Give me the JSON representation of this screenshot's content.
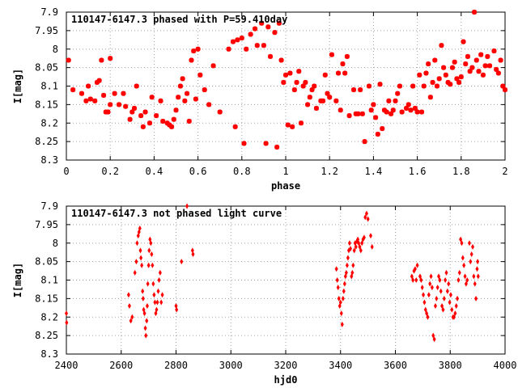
{
  "chart_data": [
    {
      "type": "scatter",
      "title": "110147-6147.3 phased with P=59.410day",
      "xlabel": "phase",
      "ylabel": "I[mag]",
      "xlim": [
        0,
        2
      ],
      "ylim": [
        8.3,
        7.9
      ],
      "y_inverted": true,
      "x_ticks": [
        "0",
        "0.2",
        "0.4",
        "0.6",
        "0.8",
        "1",
        "1.2",
        "1.4",
        "1.6",
        "1.8",
        "2"
      ],
      "x_tick_values": [
        0,
        0.2,
        0.4,
        0.6,
        0.8,
        1,
        1.2,
        1.4,
        1.6,
        1.8,
        2
      ],
      "y_ticks": [
        "7.9",
        "7.95",
        "8",
        "8.05",
        "8.1",
        "8.15",
        "8.2",
        "8.25",
        "8.3"
      ],
      "y_tick_values": [
        7.9,
        7.95,
        8,
        8.05,
        8.1,
        8.15,
        8.2,
        8.25,
        8.3
      ],
      "grid": true,
      "marker": "cross",
      "color": "#ff0000",
      "points": [
        [
          0.01,
          8.03
        ],
        [
          0.03,
          8.11
        ],
        [
          0.07,
          8.12
        ],
        [
          0.09,
          8.14
        ],
        [
          0.1,
          8.1
        ],
        [
          0.11,
          8.135
        ],
        [
          0.13,
          8.14
        ],
        [
          0.14,
          8.09
        ],
        [
          0.15,
          8.085
        ],
        [
          0.16,
          8.03
        ],
        [
          0.17,
          8.125
        ],
        [
          0.18,
          8.17
        ],
        [
          0.19,
          8.17
        ],
        [
          0.2,
          8.15
        ],
        [
          0.2,
          8.025
        ],
        [
          0.22,
          8.12
        ],
        [
          0.24,
          8.15
        ],
        [
          0.26,
          8.12
        ],
        [
          0.27,
          8.155
        ],
        [
          0.29,
          8.19
        ],
        [
          0.3,
          8.17
        ],
        [
          0.31,
          8.16
        ],
        [
          0.32,
          8.1
        ],
        [
          0.34,
          8.18
        ],
        [
          0.35,
          8.21
        ],
        [
          0.36,
          8.17
        ],
        [
          0.38,
          8.2
        ],
        [
          0.39,
          8.13
        ],
        [
          0.41,
          8.18
        ],
        [
          0.43,
          8.14
        ],
        [
          0.44,
          8.195
        ],
        [
          0.46,
          8.2
        ],
        [
          0.47,
          8.205
        ],
        [
          0.48,
          8.21
        ],
        [
          0.49,
          8.19
        ],
        [
          0.5,
          8.165
        ],
        [
          0.51,
          8.13
        ],
        [
          0.52,
          8.1
        ],
        [
          0.53,
          8.08
        ],
        [
          0.54,
          8.14
        ],
        [
          0.55,
          8.12
        ],
        [
          0.56,
          8.195
        ],
        [
          0.57,
          8.03
        ],
        [
          0.58,
          8.005
        ],
        [
          0.59,
          8.135
        ],
        [
          0.6,
          8.0
        ],
        [
          0.61,
          8.07
        ],
        [
          0.63,
          8.11
        ],
        [
          0.65,
          8.15
        ],
        [
          0.67,
          8.045
        ],
        [
          0.7,
          8.17
        ],
        [
          0.74,
          8.0
        ],
        [
          0.76,
          7.98
        ],
        [
          0.77,
          8.21
        ],
        [
          0.78,
          7.975
        ],
        [
          0.8,
          7.97
        ],
        [
          0.81,
          8.255
        ],
        [
          0.82,
          8.0
        ],
        [
          0.84,
          7.96
        ],
        [
          0.86,
          7.945
        ],
        [
          0.87,
          7.99
        ],
        [
          0.89,
          7.93
        ],
        [
          0.9,
          7.99
        ],
        [
          0.91,
          8.255
        ],
        [
          0.92,
          7.94
        ],
        [
          0.93,
          8.02
        ],
        [
          0.95,
          7.955
        ],
        [
          0.96,
          8.265
        ],
        [
          0.97,
          7.93
        ],
        [
          0.98,
          8.03
        ],
        [
          0.99,
          8.09
        ],
        [
          1.0,
          8.07
        ],
        [
          1.01,
          8.205
        ],
        [
          1.02,
          8.065
        ],
        [
          1.03,
          8.21
        ],
        [
          1.04,
          8.11
        ],
        [
          1.05,
          8.09
        ],
        [
          1.06,
          8.06
        ],
        [
          1.07,
          8.2
        ],
        [
          1.08,
          8.1
        ],
        [
          1.09,
          8.09
        ],
        [
          1.1,
          8.15
        ],
        [
          1.11,
          8.13
        ],
        [
          1.12,
          8.11
        ],
        [
          1.13,
          8.1
        ],
        [
          1.14,
          8.16
        ],
        [
          1.16,
          8.14
        ],
        [
          1.17,
          8.14
        ],
        [
          1.18,
          8.07
        ],
        [
          1.19,
          8.12
        ],
        [
          1.2,
          8.13
        ],
        [
          1.21,
          8.015
        ],
        [
          1.23,
          8.14
        ],
        [
          1.24,
          8.065
        ],
        [
          1.25,
          8.165
        ],
        [
          1.26,
          8.04
        ],
        [
          1.27,
          8.065
        ],
        [
          1.28,
          8.02
        ],
        [
          1.29,
          8.18
        ],
        [
          1.31,
          8.11
        ],
        [
          1.32,
          8.175
        ],
        [
          1.33,
          8.175
        ],
        [
          1.34,
          8.11
        ],
        [
          1.35,
          8.175
        ],
        [
          1.36,
          8.25
        ],
        [
          1.38,
          8.1
        ],
        [
          1.39,
          8.165
        ],
        [
          1.4,
          8.15
        ],
        [
          1.41,
          8.185
        ],
        [
          1.42,
          8.23
        ],
        [
          1.43,
          8.095
        ],
        [
          1.44,
          8.215
        ],
        [
          1.45,
          8.165
        ],
        [
          1.46,
          8.17
        ],
        [
          1.47,
          8.14
        ],
        [
          1.48,
          8.175
        ],
        [
          1.49,
          8.165
        ],
        [
          1.5,
          8.14
        ],
        [
          1.51,
          8.12
        ],
        [
          1.52,
          8.1
        ],
        [
          1.53,
          8.17
        ],
        [
          1.55,
          8.16
        ],
        [
          1.56,
          8.15
        ],
        [
          1.57,
          8.165
        ],
        [
          1.58,
          8.1
        ],
        [
          1.59,
          8.16
        ],
        [
          1.6,
          8.17
        ],
        [
          1.61,
          8.07
        ],
        [
          1.62,
          8.17
        ],
        [
          1.63,
          8.1
        ],
        [
          1.64,
          8.065
        ],
        [
          1.65,
          8.04
        ],
        [
          1.66,
          8.13
        ],
        [
          1.67,
          8.09
        ],
        [
          1.68,
          8.03
        ],
        [
          1.69,
          8.1
        ],
        [
          1.7,
          8.08
        ],
        [
          1.71,
          7.99
        ],
        [
          1.72,
          8.05
        ],
        [
          1.73,
          8.07
        ],
        [
          1.74,
          8.09
        ],
        [
          1.75,
          8.095
        ],
        [
          1.76,
          8.05
        ],
        [
          1.77,
          8.035
        ],
        [
          1.78,
          8.08
        ],
        [
          1.79,
          8.09
        ],
        [
          1.8,
          8.075
        ],
        [
          1.81,
          7.98
        ],
        [
          1.82,
          8.04
        ],
        [
          1.83,
          8.02
        ],
        [
          1.84,
          8.06
        ],
        [
          1.85,
          8.05
        ],
        [
          1.86,
          7.9
        ],
        [
          1.87,
          8.03
        ],
        [
          1.88,
          8.06
        ],
        [
          1.89,
          8.015
        ],
        [
          1.9,
          8.07
        ],
        [
          1.91,
          8.045
        ],
        [
          1.92,
          8.02
        ],
        [
          1.93,
          8.045
        ],
        [
          1.95,
          8.005
        ],
        [
          1.96,
          8.055
        ],
        [
          1.97,
          8.065
        ],
        [
          1.98,
          8.03
        ],
        [
          1.99,
          8.1
        ],
        [
          2.0,
          8.11
        ]
      ]
    },
    {
      "type": "scatter",
      "title": "110147-6147.3 not phased light curve",
      "xlabel": "hjd0",
      "ylabel": "I[mag]",
      "xlim": [
        2400,
        4000
      ],
      "ylim": [
        8.3,
        7.9
      ],
      "y_inverted": true,
      "x_ticks": [
        "2400",
        "2600",
        "2800",
        "3000",
        "3200",
        "3400",
        "3600",
        "3800",
        "4000"
      ],
      "x_tick_values": [
        2400,
        2600,
        2800,
        3000,
        3200,
        3400,
        3600,
        3800,
        4000
      ],
      "y_ticks": [
        "7.9",
        "7.95",
        "8",
        "8.05",
        "8.1",
        "8.15",
        "8.2",
        "8.25",
        "8.3"
      ],
      "y_tick_values": [
        7.9,
        7.95,
        8,
        8.05,
        8.1,
        8.15,
        8.2,
        8.25,
        8.3
      ],
      "grid": true,
      "marker": "diamond",
      "color": "#ff0000",
      "points": [
        [
          2400,
          8.19
        ],
        [
          2401,
          8.215
        ],
        [
          2627,
          8.14
        ],
        [
          2630,
          8.17
        ],
        [
          2635,
          8.21
        ],
        [
          2640,
          8.2
        ],
        [
          2650,
          8.08
        ],
        [
          2655,
          8.05
        ],
        [
          2658,
          8.0
        ],
        [
          2662,
          7.98
        ],
        [
          2665,
          7.97
        ],
        [
          2668,
          7.96
        ],
        [
          2670,
          8.02
        ],
        [
          2672,
          8.04
        ],
        [
          2675,
          8.06
        ],
        [
          2678,
          8.13
        ],
        [
          2680,
          8.15
        ],
        [
          2682,
          8.18
        ],
        [
          2685,
          8.19
        ],
        [
          2688,
          8.23
        ],
        [
          2690,
          8.25
        ],
        [
          2693,
          8.21
        ],
        [
          2695,
          8.17
        ],
        [
          2697,
          8.11
        ],
        [
          2700,
          8.06
        ],
        [
          2702,
          8.02
        ],
        [
          2705,
          7.99
        ],
        [
          2708,
          8.0
        ],
        [
          2711,
          8.03
        ],
        [
          2714,
          8.06
        ],
        [
          2717,
          8.11
        ],
        [
          2720,
          8.14
        ],
        [
          2723,
          8.16
        ],
        [
          2726,
          8.19
        ],
        [
          2729,
          8.18
        ],
        [
          2732,
          8.16
        ],
        [
          2735,
          8.13
        ],
        [
          2738,
          8.1
        ],
        [
          2742,
          8.08
        ],
        [
          2746,
          8.16
        ],
        [
          2750,
          8.14
        ],
        [
          2800,
          8.17
        ],
        [
          2802,
          8.18
        ],
        [
          2820,
          8.05
        ],
        [
          2840,
          7.9
        ],
        [
          2860,
          8.02
        ],
        [
          2862,
          8.03
        ],
        [
          3385,
          8.07
        ],
        [
          3388,
          8.1
        ],
        [
          3391,
          8.12
        ],
        [
          3394,
          8.15
        ],
        [
          3397,
          8.17
        ],
        [
          3400,
          8.16
        ],
        [
          3403,
          8.19
        ],
        [
          3406,
          8.22
        ],
        [
          3409,
          8.15
        ],
        [
          3412,
          8.13
        ],
        [
          3415,
          8.11
        ],
        [
          3418,
          8.09
        ],
        [
          3421,
          8.08
        ],
        [
          3424,
          8.06
        ],
        [
          3427,
          8.04
        ],
        [
          3430,
          8.02
        ],
        [
          3433,
          8.0
        ],
        [
          3436,
          8.015
        ],
        [
          3440,
          8.09
        ],
        [
          3443,
          8.08
        ],
        [
          3446,
          8.06
        ],
        [
          3450,
          8.02
        ],
        [
          3453,
          8.0
        ],
        [
          3456,
          8.01
        ],
        [
          3460,
          7.995
        ],
        [
          3463,
          7.99
        ],
        [
          3466,
          8.0
        ],
        [
          3470,
          8.01
        ],
        [
          3474,
          8.02
        ],
        [
          3478,
          8.0
        ],
        [
          3482,
          7.99
        ],
        [
          3486,
          7.985
        ],
        [
          3490,
          7.93
        ],
        [
          3495,
          7.92
        ],
        [
          3500,
          7.935
        ],
        [
          3510,
          7.98
        ],
        [
          3515,
          8.01
        ],
        [
          3660,
          8.09
        ],
        [
          3664,
          8.1
        ],
        [
          3668,
          8.075
        ],
        [
          3672,
          8.07
        ],
        [
          3676,
          8.1
        ],
        [
          3680,
          8.06
        ],
        [
          3690,
          8.09
        ],
        [
          3694,
          8.1
        ],
        [
          3698,
          8.12
        ],
        [
          3702,
          8.14
        ],
        [
          3706,
          8.16
        ],
        [
          3710,
          8.18
        ],
        [
          3714,
          8.19
        ],
        [
          3718,
          8.2
        ],
        [
          3722,
          8.14
        ],
        [
          3726,
          8.11
        ],
        [
          3730,
          8.09
        ],
        [
          3734,
          8.12
        ],
        [
          3738,
          8.25
        ],
        [
          3742,
          8.26
        ],
        [
          3746,
          8.17
        ],
        [
          3750,
          8.15
        ],
        [
          3754,
          8.12
        ],
        [
          3758,
          8.09
        ],
        [
          3762,
          8.1
        ],
        [
          3766,
          8.13
        ],
        [
          3770,
          8.17
        ],
        [
          3774,
          8.18
        ],
        [
          3778,
          8.15
        ],
        [
          3782,
          8.1
        ],
        [
          3786,
          8.08
        ],
        [
          3790,
          8.13
        ],
        [
          3794,
          8.11
        ],
        [
          3798,
          8.16
        ],
        [
          3802,
          8.14
        ],
        [
          3806,
          8.18
        ],
        [
          3810,
          8.2
        ],
        [
          3814,
          8.2
        ],
        [
          3818,
          8.19
        ],
        [
          3822,
          8.17
        ],
        [
          3826,
          8.15
        ],
        [
          3830,
          8.1
        ],
        [
          3834,
          8.08
        ],
        [
          3838,
          7.99
        ],
        [
          3842,
          8.0
        ],
        [
          3846,
          8.04
        ],
        [
          3850,
          8.06
        ],
        [
          3854,
          8.09
        ],
        [
          3858,
          8.11
        ],
        [
          3862,
          8.1
        ],
        [
          3870,
          8.0
        ],
        [
          3874,
          8.05
        ],
        [
          3878,
          8.03
        ],
        [
          3882,
          8.01
        ],
        [
          3886,
          8.09
        ],
        [
          3890,
          8.11
        ],
        [
          3894,
          8.15
        ],
        [
          3898,
          8.07
        ],
        [
          3900,
          8.05
        ],
        [
          3902,
          8.09
        ]
      ]
    }
  ]
}
